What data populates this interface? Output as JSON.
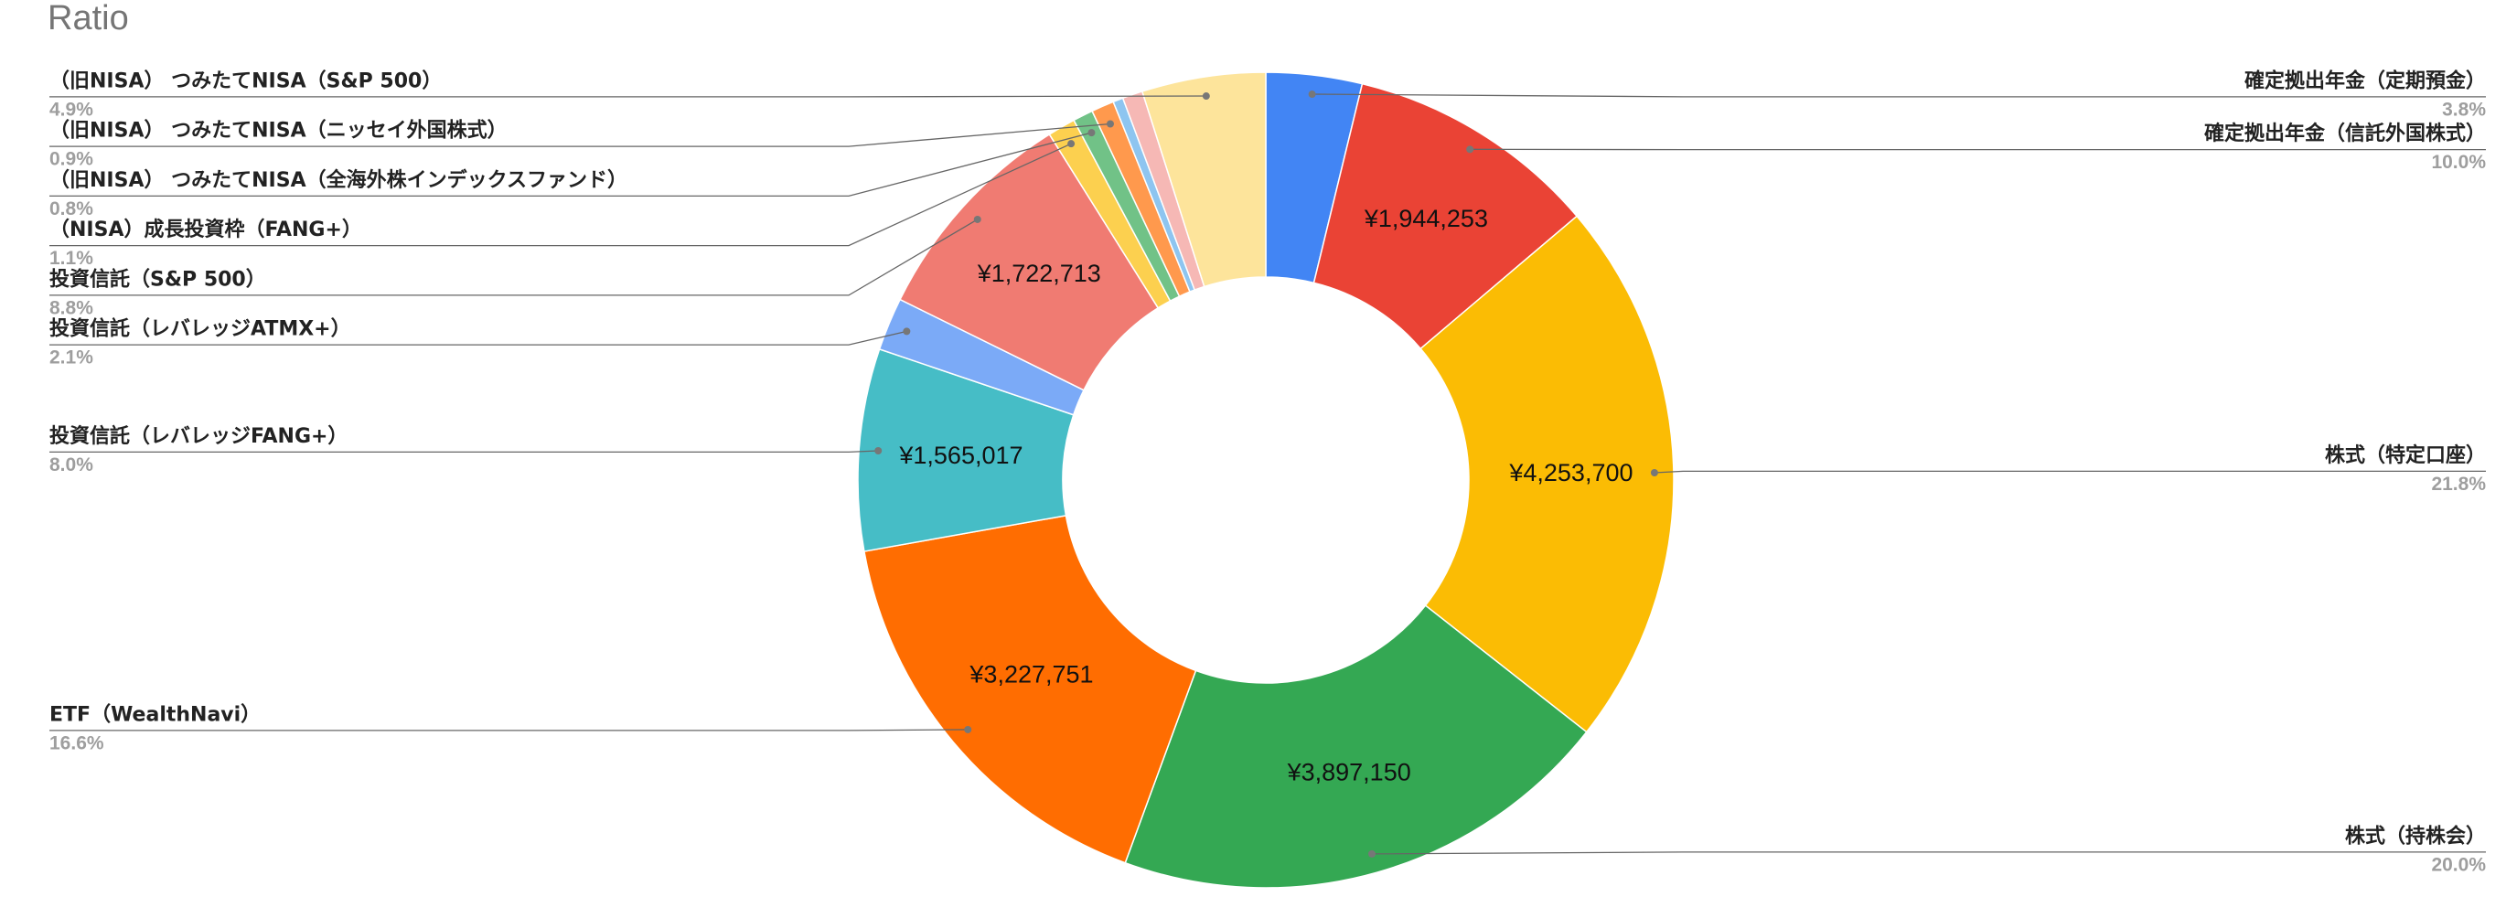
{
  "chart_data": {
    "type": "donut",
    "title": "Ratio",
    "categories": [
      "確定拠出年金（定期預金）",
      "確定拠出年金（信託外国株式）",
      "株式（特定口座）",
      "株式（持株会）",
      "ETF（WealthNavi）",
      "投資信託（レバレッジFANG+）",
      "投資信託（レバレッジATMX+）",
      "投資信託（S&P 500）",
      "（NISA）成長投資枠（FANG+）",
      "（旧NISA） つみたてNISA（全海外株インデックスファンド）",
      "（旧NISA） つみたてNISA（ニッセイ外国株式）",
      null,
      null,
      "（旧NISA） つみたてNISA（S&P 500）"
    ],
    "values": [
      3.8,
      10.0,
      21.8,
      20.0,
      16.6,
      8.0,
      2.1,
      8.8,
      1.1,
      0.8,
      0.9,
      0.4,
      0.8,
      4.9
    ],
    "value_labels": [
      "3.8%",
      "10.0%",
      "21.8%",
      "20.0%",
      "16.6%",
      "8.0%",
      "2.1%",
      "8.8%",
      "1.1%",
      "0.8%",
      "0.9%",
      null,
      null,
      "4.9%"
    ],
    "data_labels": [
      null,
      "¥1,944,253",
      "¥4,253,700",
      "¥3,897,150",
      "¥3,227,751",
      "¥1,565,017",
      null,
      "¥1,722,713",
      null,
      null,
      null,
      null,
      null,
      null
    ],
    "colors": [
      "#4285f4",
      "#ea4335",
      "#fbbc04",
      "#34a853",
      "#ff6d01",
      "#46bdc6",
      "#7baaf7",
      "#f07b72",
      "#fcd04f",
      "#71c287",
      "#ff994d",
      "#8ec5f0",
      "#f6b8b5",
      "#fde49b"
    ]
  }
}
